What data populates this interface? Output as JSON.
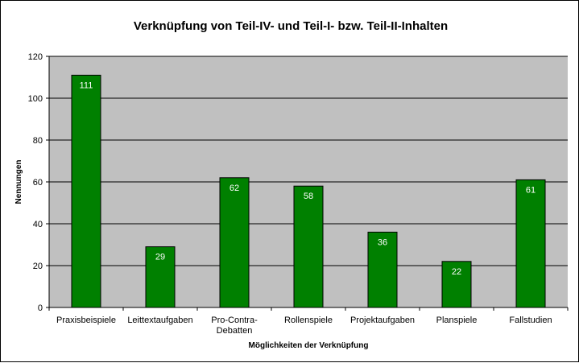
{
  "chart_data": {
    "type": "bar",
    "title": "Verknüpfung von Teil-IV- und Teil-I- bzw. Teil-II-Inhalten",
    "xlabel": "Möglichkeiten der Verknüpfung",
    "ylabel": "Nennungen",
    "categories": [
      "Praxisbeispiele",
      "Leittextaufgaben",
      "Pro-Contra-Debatten",
      "Rollenspiele",
      "Projektaufgaben",
      "Planspiele",
      "Fallstudien"
    ],
    "category_lines": [
      [
        "Praxisbeispiele"
      ],
      [
        "Leittextaufgaben"
      ],
      [
        "Pro-Contra-",
        "Debatten"
      ],
      [
        "Rollenspiele"
      ],
      [
        "Projektaufgaben"
      ],
      [
        "Planspiele"
      ],
      [
        "Fallstudien"
      ]
    ],
    "values": [
      111,
      29,
      62,
      58,
      36,
      22,
      61
    ],
    "ylim": [
      0,
      120
    ],
    "yticks": [
      0,
      20,
      40,
      60,
      80,
      100,
      120
    ],
    "grid": true,
    "legend": "none",
    "data_labels": true
  },
  "colors": {
    "bar_fill": "#008000",
    "bar_stroke": "#000000",
    "plot_background": "#c0c0c0",
    "gridline": "#000000",
    "data_label": "#ffffff"
  }
}
